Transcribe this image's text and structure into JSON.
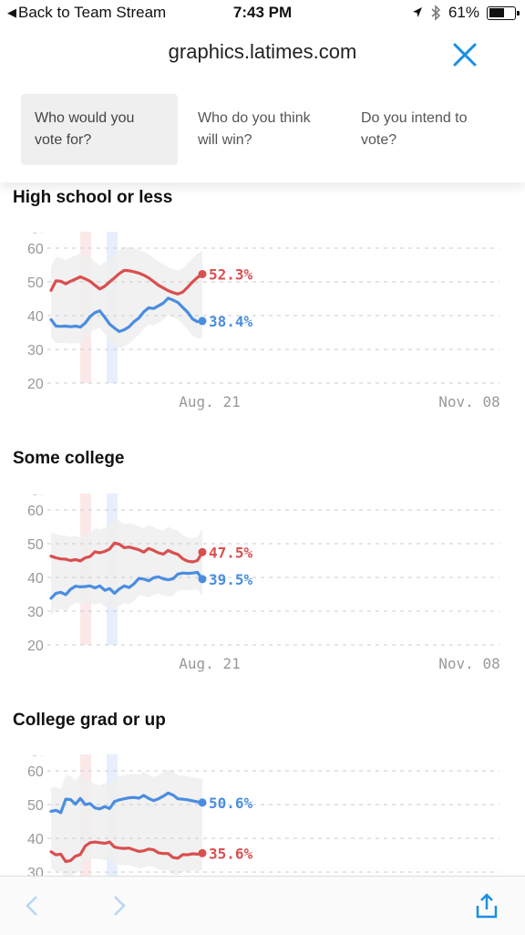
{
  "status_bar": {
    "back_label": "Back to Team Stream",
    "time": "7:43 PM",
    "battery": "61%",
    "battery_level": 0.61,
    "location_icon": "location-arrow-icon",
    "bluetooth_icon": "bluetooth-icon"
  },
  "browser": {
    "url": "graphics.latimes.com",
    "close_icon": "close-icon"
  },
  "tabs": [
    {
      "label": "Who would you vote for?",
      "active": true
    },
    {
      "label": "Who do you think will win?",
      "active": false
    },
    {
      "label": "Do you intend to vote?",
      "active": false
    }
  ],
  "colors": {
    "trump": "#d94f4f",
    "clinton": "#4a8de0",
    "band": "#efefef",
    "grid": "#cccccc",
    "axis_text": "#999999",
    "accent": "#1a8fe3"
  },
  "sections": [
    {
      "title": "High school or less"
    },
    {
      "title": "Some college"
    },
    {
      "title": "College grad or up"
    }
  ],
  "chart_data": [
    {
      "type": "line",
      "title": "High school or less",
      "x_ticks": [
        "Aug. 21",
        "Nov. 08"
      ],
      "yticks": [
        20,
        30,
        40,
        50,
        60
      ],
      "ylim": [
        20,
        65
      ],
      "grid": true,
      "series": [
        {
          "color": "#d94f4f",
          "end_label": "52.3%",
          "values": [
            47.5,
            50.3,
            50.2,
            49.4,
            50.2,
            50.8,
            51.5,
            50.9,
            50.2,
            49.0,
            47.9,
            48.7,
            50.0,
            51.2,
            52.5,
            53.4,
            53.3,
            53.0,
            52.6,
            52.0,
            51.2,
            50.1,
            49.0,
            48.2,
            47.4,
            46.8,
            46.4,
            47.0,
            48.4,
            50.0,
            51.3,
            52.3
          ]
        },
        {
          "color": "#4a8de0",
          "end_label": "38.4%",
          "values": [
            38.8,
            36.9,
            36.8,
            36.9,
            36.7,
            36.9,
            36.6,
            37.8,
            39.7,
            40.9,
            41.4,
            39.5,
            37.5,
            36.3,
            35.3,
            35.8,
            36.7,
            38.2,
            39.3,
            41.1,
            42.3,
            42.1,
            42.9,
            43.7,
            45.2,
            44.6,
            43.9,
            42.4,
            41.0,
            39.0,
            38.2,
            38.4
          ]
        }
      ]
    },
    {
      "type": "line",
      "title": "Some college",
      "x_ticks": [
        "Aug. 21",
        "Nov. 08"
      ],
      "yticks": [
        20,
        30,
        40,
        50,
        60
      ],
      "ylim": [
        20,
        65
      ],
      "grid": true,
      "series": [
        {
          "color": "#d94f4f",
          "end_label": "47.5%",
          "values": [
            46.3,
            45.8,
            45.5,
            45.4,
            45.0,
            45.3,
            44.9,
            45.8,
            46.2,
            47.6,
            47.3,
            47.7,
            48.4,
            50.2,
            49.8,
            48.8,
            49.0,
            48.6,
            48.2,
            47.5,
            48.6,
            48.0,
            47.3,
            46.9,
            48.0,
            47.3,
            46.8,
            45.5,
            44.8,
            44.6,
            45.0,
            47.5
          ]
        },
        {
          "color": "#4a8de0",
          "end_label": "39.5%",
          "values": [
            33.8,
            35.3,
            35.6,
            34.9,
            36.5,
            37.4,
            37.2,
            37.3,
            37.5,
            36.9,
            37.5,
            36.2,
            36.7,
            35.3,
            36.6,
            37.5,
            37.0,
            38.1,
            39.7,
            39.5,
            39.0,
            39.9,
            40.2,
            39.6,
            39.3,
            39.6,
            41.0,
            41.3,
            41.2,
            41.3,
            41.5,
            39.5
          ]
        }
      ]
    },
    {
      "type": "line",
      "title": "College grad or up",
      "x_ticks": [],
      "yticks": [
        30,
        40,
        50,
        60
      ],
      "ylim": [
        20,
        65
      ],
      "grid": true,
      "series": [
        {
          "color": "#4a8de0",
          "end_label": "50.6%",
          "values": [
            48.0,
            48.3,
            47.6,
            51.6,
            51.5,
            50.1,
            51.8,
            50.0,
            50.3,
            49.0,
            48.7,
            49.4,
            48.8,
            50.9,
            51.4,
            51.7,
            52.0,
            52.1,
            51.9,
            52.7,
            51.8,
            51.2,
            51.7,
            52.5,
            53.4,
            52.8,
            51.7,
            51.6,
            51.4,
            51.1,
            50.8,
            50.6
          ]
        },
        {
          "color": "#d94f4f",
          "end_label": "35.6%",
          "values": [
            36.0,
            35.1,
            35.3,
            33.1,
            33.4,
            34.7,
            35.2,
            37.7,
            38.7,
            38.9,
            38.7,
            38.5,
            38.9,
            37.4,
            37.1,
            37.0,
            37.1,
            36.6,
            36.1,
            36.3,
            36.8,
            36.6,
            35.7,
            35.5,
            35.5,
            34.3,
            34.1,
            35.2,
            35.1,
            35.4,
            35.3,
            35.6
          ]
        }
      ]
    }
  ]
}
